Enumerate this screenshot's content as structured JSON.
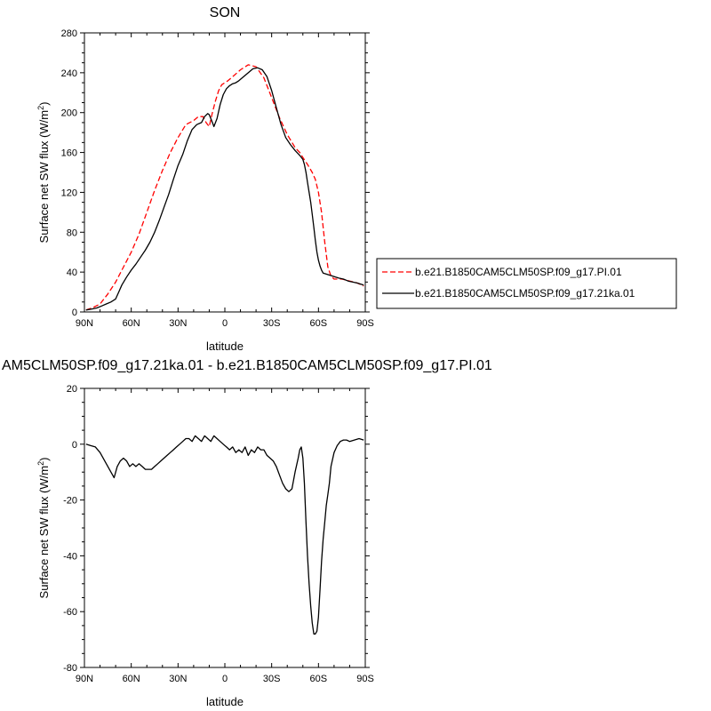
{
  "chart_data": [
    {
      "type": "line",
      "title": "SON",
      "xlabel": "latitude",
      "ylabel": "Surface net SW flux (W/m",
      "ylabel_sup": "2",
      "ylabel_end": ")",
      "xlim": [
        -90,
        90
      ],
      "ylim": [
        0,
        280
      ],
      "xticks": [
        {
          "value": -90,
          "label": "90N"
        },
        {
          "value": -60,
          "label": "60N"
        },
        {
          "value": -30,
          "label": "30N"
        },
        {
          "value": 0,
          "label": "0"
        },
        {
          "value": 30,
          "label": "30S"
        },
        {
          "value": 60,
          "label": "60S"
        },
        {
          "value": 90,
          "label": "90S"
        }
      ],
      "yticks": [
        0,
        40,
        80,
        120,
        160,
        200,
        240,
        280
      ],
      "grid": false,
      "legend_position": "right",
      "series": [
        {
          "name": "b.e21.B1850CAM5CLM50SP.f09_g17.PI.01",
          "color": "#ff0000",
          "style": "dashed",
          "x": [
            -89,
            -85,
            -80,
            -75,
            -70,
            -65,
            -60,
            -55,
            -50,
            -45,
            -40,
            -35,
            -30,
            -25,
            -20,
            -17,
            -14,
            -12,
            -10,
            -8,
            -6,
            -4,
            -2,
            0,
            2,
            5,
            10,
            15,
            20,
            25,
            30,
            35,
            40,
            45,
            48,
            50,
            53,
            56,
            58,
            60,
            62,
            64,
            66,
            68,
            70,
            75,
            80,
            85,
            89
          ],
          "y": [
            2,
            4,
            8,
            18,
            30,
            45,
            60,
            78,
            100,
            122,
            142,
            160,
            175,
            188,
            192,
            196,
            196,
            190,
            186,
            200,
            212,
            222,
            228,
            230,
            232,
            236,
            243,
            248,
            246,
            235,
            215,
            195,
            178,
            165,
            160,
            155,
            148,
            140,
            133,
            120,
            100,
            70,
            45,
            36,
            33,
            33,
            31,
            29,
            26
          ]
        },
        {
          "name": "b.e21.B1850CAM5CLM50SP.f09_g17.21ka.01",
          "color": "#000000",
          "style": "solid",
          "x": [
            -89,
            -85,
            -82,
            -79,
            -76,
            -73,
            -70,
            -68,
            -66,
            -63,
            -60,
            -57,
            -54,
            -51,
            -48,
            -45,
            -42,
            -39,
            -36,
            -33,
            -30,
            -27,
            -24,
            -21,
            -18,
            -15,
            -13,
            -11,
            -10,
            -9,
            -8,
            -7,
            -5,
            -3,
            -1,
            1,
            3,
            5,
            7,
            9,
            12,
            15,
            18,
            21,
            24,
            27,
            30,
            33,
            36,
            39,
            42,
            45,
            48,
            50,
            51,
            52,
            53,
            54,
            55,
            56,
            57,
            58,
            59,
            60,
            61,
            62,
            63,
            65,
            67,
            69,
            71,
            73,
            76,
            79,
            82,
            85,
            89
          ],
          "y": [
            2,
            3,
            4,
            6,
            8,
            10,
            13,
            20,
            27,
            35,
            42,
            48,
            55,
            62,
            70,
            80,
            92,
            105,
            118,
            133,
            147,
            158,
            172,
            183,
            188,
            190,
            196,
            199,
            198,
            194,
            190,
            186,
            194,
            208,
            218,
            224,
            227,
            229,
            230,
            232,
            236,
            240,
            244,
            245,
            243,
            236,
            222,
            205,
            188,
            175,
            168,
            162,
            157,
            153,
            148,
            140,
            130,
            120,
            110,
            98,
            85,
            72,
            60,
            52,
            46,
            42,
            39,
            38,
            37,
            36,
            35,
            34,
            33,
            31,
            30,
            29,
            27
          ]
        }
      ]
    },
    {
      "type": "line",
      "title": "AM5CLM50SP.f09_g17.21ka.01 - b.e21.B1850CAM5CLM50SP.f09_g17.PI.01",
      "xlabel": "latitude",
      "ylabel": "Surface net SW flux (W/m",
      "ylabel_sup": "2",
      "ylabel_end": ")",
      "xlim": [
        -90,
        90
      ],
      "ylim": [
        -80,
        20
      ],
      "xticks": [
        {
          "value": -90,
          "label": "90N"
        },
        {
          "value": -60,
          "label": "60N"
        },
        {
          "value": -30,
          "label": "30N"
        },
        {
          "value": 0,
          "label": "0"
        },
        {
          "value": 30,
          "label": "30S"
        },
        {
          "value": 60,
          "label": "60S"
        },
        {
          "value": 90,
          "label": "90S"
        }
      ],
      "yticks": [
        -80,
        -60,
        -40,
        -20,
        0,
        20
      ],
      "grid": false,
      "series": [
        {
          "color": "#000000",
          "style": "solid",
          "x": [
            -89,
            -86,
            -83,
            -80,
            -77,
            -74,
            -71,
            -69,
            -67,
            -65,
            -63,
            -61,
            -59,
            -57,
            -55,
            -53,
            -51,
            -49,
            -47,
            -45,
            -43,
            -41,
            -39,
            -37,
            -35,
            -33,
            -31,
            -29,
            -27,
            -25,
            -23,
            -21,
            -19,
            -17,
            -15,
            -13,
            -11,
            -9,
            -7,
            -5,
            -3,
            -1,
            1,
            3,
            5,
            7,
            9,
            11,
            13,
            15,
            17,
            19,
            21,
            23,
            25,
            27,
            29,
            31,
            33,
            35,
            37,
            39,
            41,
            43,
            45,
            47,
            48,
            49,
            50,
            51,
            52,
            53,
            54,
            55,
            56,
            57,
            58,
            59,
            60,
            61,
            62,
            63,
            64,
            65,
            66,
            67,
            68,
            70,
            72,
            74,
            76,
            78,
            80,
            83,
            86,
            89
          ],
          "y": [
            0,
            -0.5,
            -1,
            -3,
            -6,
            -9,
            -12,
            -8,
            -6,
            -5,
            -6,
            -8,
            -7,
            -8,
            -7,
            -8,
            -9,
            -9,
            -9,
            -8,
            -7,
            -6,
            -5,
            -4,
            -3,
            -2,
            -1,
            0,
            1,
            2,
            2,
            1,
            3,
            2,
            1,
            3,
            2,
            1,
            3,
            2,
            1,
            0,
            -1,
            -2,
            -1,
            -3,
            -2,
            -3,
            -1,
            -4,
            -2,
            -3,
            -1,
            -2,
            -2,
            -4,
            -5,
            -6,
            -8,
            -11,
            -14,
            -16,
            -17,
            -16,
            -10,
            -5,
            -2,
            -1,
            -5,
            -14,
            -28,
            -40,
            -50,
            -58,
            -64,
            -68,
            -68,
            -67,
            -62,
            -52,
            -42,
            -34,
            -28,
            -22,
            -18,
            -14,
            -8,
            -3,
            -0.5,
            1,
            1.5,
            1.5,
            1,
            1.5,
            2,
            1.5
          ]
        }
      ]
    }
  ]
}
